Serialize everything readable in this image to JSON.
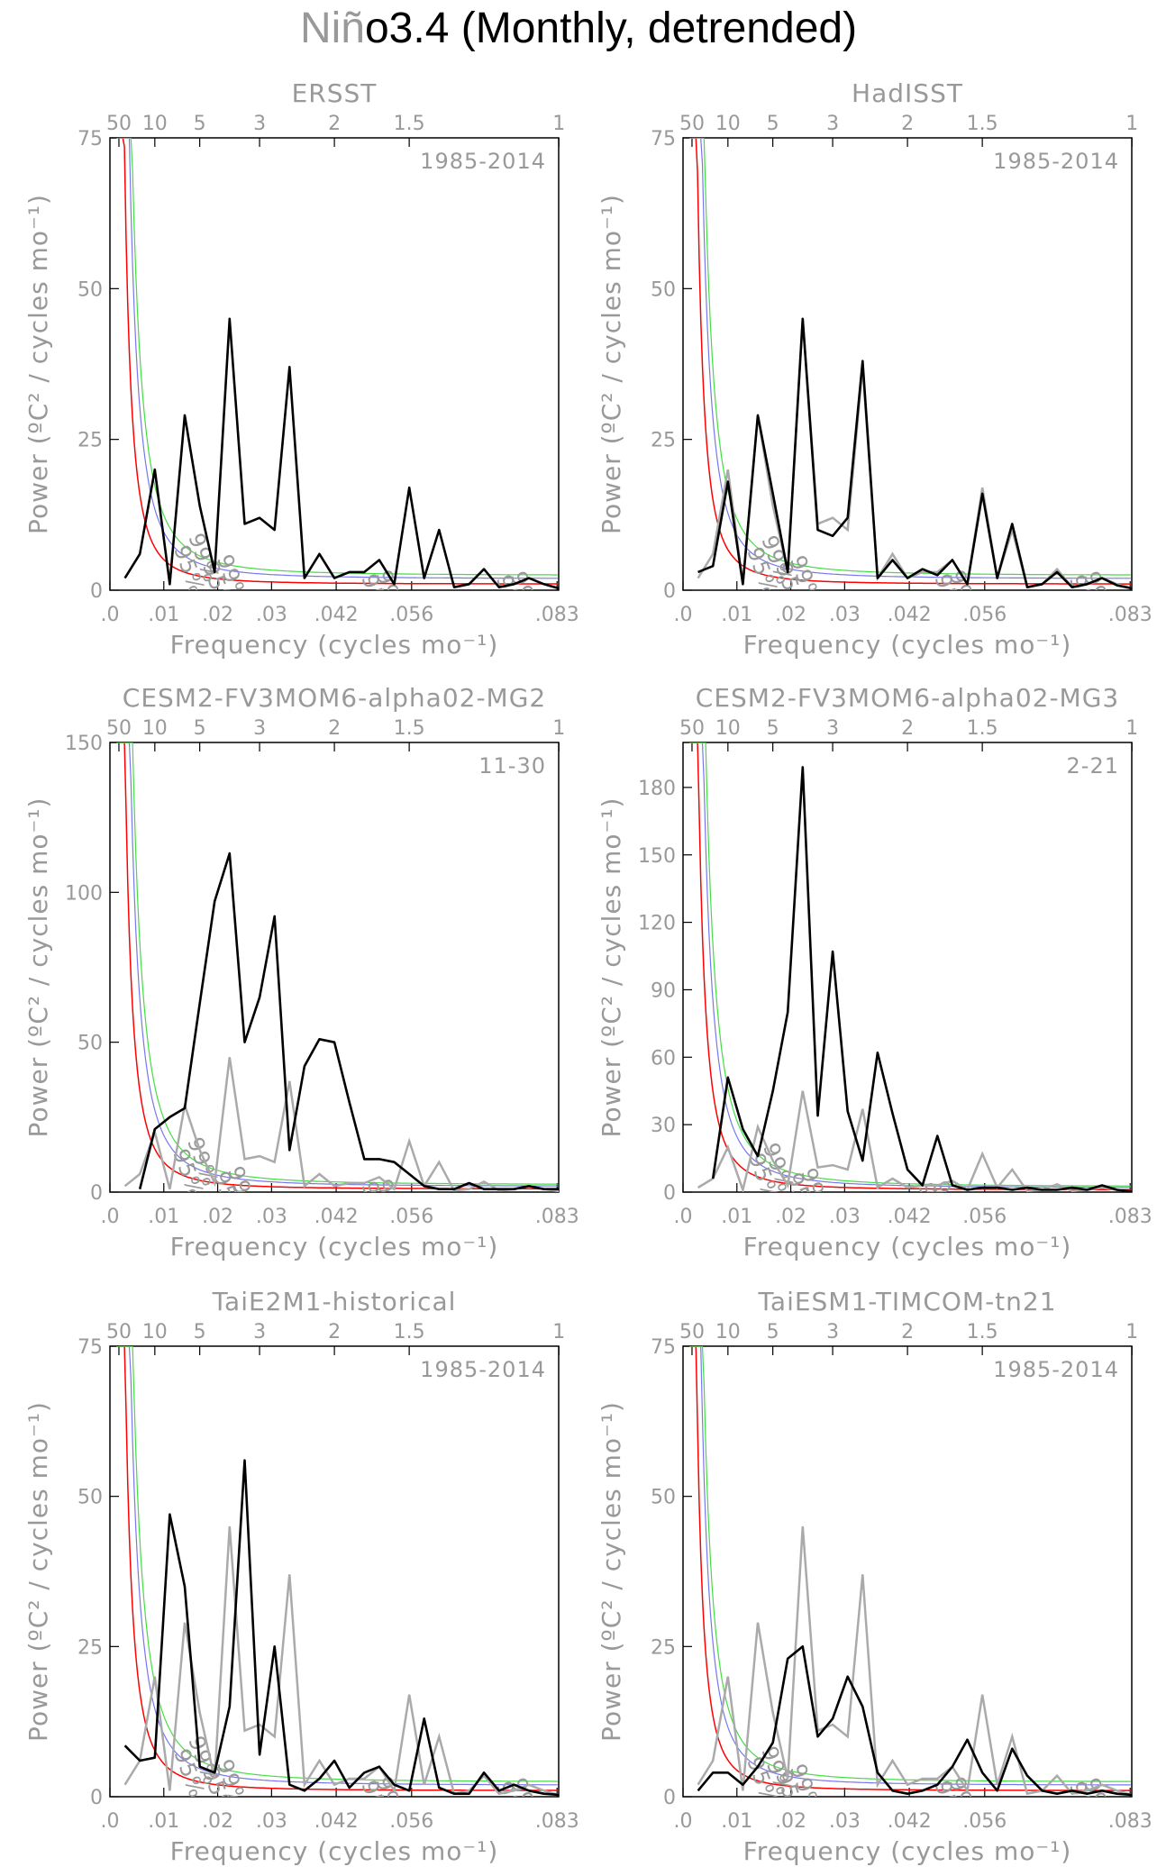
{
  "figure": {
    "title_grey": "Niñ",
    "title_black": "o3.4 (Monthly, detrended)"
  },
  "axes": {
    "xlabel": "Frequency (cycles mo⁻¹)",
    "ylabel": "Power (ºC² / cycles mo⁻¹)",
    "x_ticks": [
      0.0,
      0.01,
      0.02,
      0.03,
      0.042,
      0.056,
      0.083
    ],
    "x_tick_labels": [
      ".0",
      ".01",
      ".02",
      ".03",
      ".042",
      ".056",
      ".083"
    ],
    "top_ticks": [
      50,
      10,
      5,
      3,
      2,
      1.5,
      1
    ],
    "top_tick_labels": [
      "50",
      "10",
      "5",
      "3",
      "2",
      "1.5",
      "1"
    ],
    "xlim": [
      0,
      0.0833
    ]
  },
  "colors": {
    "observed": "#000000",
    "reference": "#aaaaaa",
    "red_noise": "#ff0000",
    "conf95": "#7777ee",
    "conf99": "#44dd44",
    "text": "#999999"
  },
  "curve_labels": {
    "c95": "95%",
    "c99": "99%"
  },
  "chart_data": [
    {
      "type": "line",
      "title": "ERSST",
      "period": "1985-2014",
      "ylim": [
        0,
        75
      ],
      "y_ticks": [
        0,
        25,
        50,
        75
      ],
      "x": [
        0.00278,
        0.00556,
        0.00833,
        0.01111,
        0.01389,
        0.01667,
        0.01944,
        0.02222,
        0.025,
        0.02778,
        0.03056,
        0.03333,
        0.03611,
        0.03889,
        0.04167,
        0.04444,
        0.04722,
        0.05,
        0.05278,
        0.05556,
        0.05833,
        0.06111,
        0.06389,
        0.06667,
        0.06944,
        0.07222,
        0.075,
        0.07778,
        0.08056,
        0.08333
      ],
      "series": [
        {
          "name": "ERSST",
          "values": [
            2,
            6,
            20,
            1,
            29,
            14,
            3,
            45,
            11,
            12,
            10,
            37,
            2,
            6,
            2,
            3,
            3,
            5,
            1,
            17,
            2,
            10,
            0.5,
            1,
            3.5,
            0.5,
            1,
            2,
            1,
            0.3
          ]
        }
      ],
      "red_noise_peak": 68,
      "c95_scale": 1.9,
      "c99_scale": 2.45,
      "label_freqs": [
        0.0122,
        0.0175,
        0.047,
        0.072
      ]
    },
    {
      "type": "line",
      "title": "HadISST",
      "period": "1985-2014",
      "ylim": [
        0,
        75
      ],
      "y_ticks": [
        0,
        25,
        50,
        75
      ],
      "x": [
        0.00278,
        0.00556,
        0.00833,
        0.01111,
        0.01389,
        0.01667,
        0.01944,
        0.02222,
        0.025,
        0.02778,
        0.03056,
        0.03333,
        0.03611,
        0.03889,
        0.04167,
        0.04444,
        0.04722,
        0.05,
        0.05278,
        0.05556,
        0.05833,
        0.06111,
        0.06389,
        0.06667,
        0.06944,
        0.07222,
        0.075,
        0.07778,
        0.08056,
        0.08333
      ],
      "series": [
        {
          "name": "HadISST",
          "values": [
            3,
            4,
            18,
            1,
            29,
            16,
            3,
            45,
            10,
            9,
            12,
            38,
            2,
            5,
            2,
            3.5,
            2.5,
            5,
            1,
            16,
            2,
            11,
            0.5,
            1,
            3,
            0.5,
            1,
            2,
            0.8,
            0.3
          ]
        }
      ],
      "red_noise_peak": 64,
      "c95_scale": 1.9,
      "c99_scale": 2.45,
      "label_freqs": [
        0.0122,
        0.0175,
        0.047,
        0.072
      ]
    },
    {
      "type": "line",
      "title": "CESM2-FV3MOM6-alpha02-MG2",
      "period": "11-30",
      "ylim": [
        0,
        150
      ],
      "y_ticks": [
        0,
        50,
        100,
        150
      ],
      "x": [
        0.00278,
        0.00556,
        0.00833,
        0.01111,
        0.01389,
        0.01667,
        0.01944,
        0.02222,
        0.025,
        0.02778,
        0.03056,
        0.03333,
        0.03611,
        0.03889,
        0.04167,
        0.04444,
        0.04722,
        0.05,
        0.05278,
        0.05556,
        0.05833,
        0.06111,
        0.06389,
        0.06667,
        0.06944,
        0.07222,
        0.075,
        0.07778,
        0.08056,
        0.08333
      ],
      "series": [
        {
          "name": "CESM2-FV3MOM6-alpha02-MG2",
          "values": [
            null,
            1,
            21,
            25,
            28,
            63,
            97,
            113,
            50,
            65,
            92,
            14,
            42,
            51,
            50,
            30,
            11,
            11,
            10,
            6,
            2,
            1,
            1,
            3,
            1,
            1,
            1,
            2,
            1,
            1
          ]
        }
      ],
      "red_noise_peak": 150,
      "c95_scale": 1.9,
      "c99_scale": 2.45,
      "label_freqs": [
        0.012,
        0.0195,
        0.047
      ]
    },
    {
      "type": "line",
      "title": "CESM2-FV3MOM6-alpha02-MG3",
      "period": "2-21",
      "ylim": [
        0,
        200
      ],
      "y_ticks": [
        0,
        30,
        60,
        90,
        120,
        150,
        180
      ],
      "x": [
        0.00278,
        0.00556,
        0.00833,
        0.01111,
        0.01389,
        0.01667,
        0.01944,
        0.02222,
        0.025,
        0.02778,
        0.03056,
        0.03333,
        0.03611,
        0.03889,
        0.04167,
        0.04444,
        0.04722,
        0.05,
        0.05278,
        0.05556,
        0.05833,
        0.06111,
        0.06389,
        0.06667,
        0.06944,
        0.07222,
        0.075,
        0.07778,
        0.08056,
        0.08333
      ],
      "series": [
        {
          "name": "CESM2-FV3MOM6-alpha02-MG3",
          "values": [
            null,
            6,
            51,
            28,
            16,
            45,
            80,
            189,
            34,
            107,
            36,
            14,
            62,
            35,
            10,
            3,
            25,
            3,
            1,
            2,
            2,
            1,
            2,
            1,
            1,
            2,
            1,
            3,
            1,
            0.3
          ]
        }
      ],
      "red_noise_peak": 200,
      "c95_scale": 1.9,
      "c99_scale": 2.45,
      "label_freqs": [
        0.0125,
        0.0195,
        0.044
      ]
    },
    {
      "type": "line",
      "title": "TaiE2M1-historical",
      "period": "1985-2014",
      "ylim": [
        0,
        75
      ],
      "y_ticks": [
        0,
        25,
        50,
        75
      ],
      "x": [
        0.00278,
        0.00556,
        0.00833,
        0.01111,
        0.01389,
        0.01667,
        0.01944,
        0.02222,
        0.025,
        0.02778,
        0.03056,
        0.03333,
        0.03611,
        0.03889,
        0.04167,
        0.04444,
        0.04722,
        0.05,
        0.05278,
        0.05556,
        0.05833,
        0.06111,
        0.06389,
        0.06667,
        0.06944,
        0.07222,
        0.075,
        0.07778,
        0.08056,
        0.08333
      ],
      "series": [
        {
          "name": "TaiE2M1-historical",
          "values": [
            8.5,
            6,
            6.5,
            47,
            35,
            5,
            4,
            15,
            56,
            7,
            25,
            2,
            1,
            3,
            6,
            1.5,
            4,
            5,
            2,
            1,
            13,
            1.5,
            0.5,
            0.5,
            4,
            1,
            2,
            1,
            0.5,
            0.3
          ]
        }
      ],
      "red_noise_peak": 75,
      "c95_scale": 1.9,
      "c99_scale": 2.45,
      "label_freqs": [
        0.0122,
        0.0175,
        0.047,
        0.072
      ]
    },
    {
      "type": "line",
      "title": "TaiESM1-TIMCOM-tn21",
      "period": "1985-2014",
      "ylim": [
        0,
        75
      ],
      "y_ticks": [
        0,
        25,
        50,
        75
      ],
      "x": [
        0.00278,
        0.00556,
        0.00833,
        0.01111,
        0.01389,
        0.01667,
        0.01944,
        0.02222,
        0.025,
        0.02778,
        0.03056,
        0.03333,
        0.03611,
        0.03889,
        0.04167,
        0.04444,
        0.04722,
        0.05,
        0.05278,
        0.05556,
        0.05833,
        0.06111,
        0.06389,
        0.06667,
        0.06944,
        0.07222,
        0.075,
        0.07778,
        0.08056,
        0.08333
      ],
      "series": [
        {
          "name": "TaiESM1-TIMCOM-tn21",
          "values": [
            1,
            4,
            4,
            2,
            5,
            9,
            23,
            25,
            10,
            13,
            20,
            15,
            4,
            1,
            0.5,
            1,
            2,
            5,
            9.5,
            4,
            1,
            8,
            3.5,
            1,
            0.5,
            1,
            0.5,
            1,
            0.5,
            0.3
          ]
        }
      ],
      "red_noise_peak": 57,
      "c95_scale": 1.9,
      "c99_scale": 2.45,
      "label_freqs": [
        0.0122,
        0.0175,
        0.047,
        0.072
      ]
    }
  ]
}
